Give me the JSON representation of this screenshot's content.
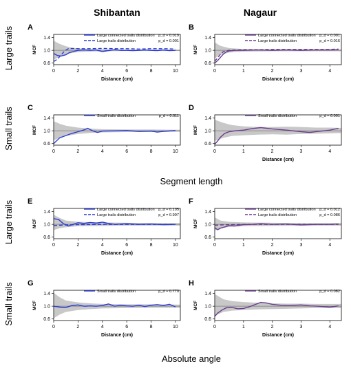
{
  "columns": [
    "Shibantan",
    "Nagaur"
  ],
  "row_labels": [
    "Large trails",
    "Small trails",
    "Large trails",
    "Small trails"
  ],
  "section_labels": [
    "Segment length",
    "Absolute angle"
  ],
  "colors": {
    "shibantan": "#2b3bd6",
    "nagaur": "#6a3d8f",
    "envelope": "#c8c8c8",
    "reference": "#777777"
  },
  "chart_data": [
    {
      "id": "A",
      "type": "line",
      "xlabel": "Distance (cm)",
      "ylabel": "MCF",
      "xlim": [
        0,
        10.4
      ],
      "ylim": [
        0.55,
        1.5
      ],
      "xticks": [
        0,
        2,
        4,
        6,
        8,
        10
      ],
      "yticks": [
        0.6,
        1.0,
        1.4
      ],
      "series": [
        {
          "name": "Large connected trails distribution",
          "pvalue": "p_d = 0.019",
          "style": "solid",
          "x": [
            0,
            0.3,
            0.6,
            1.0,
            1.3,
            1.7,
            2.0,
            2.5,
            3.0,
            3.5,
            4.0,
            4.5,
            5.0,
            5.5,
            6.0,
            6.5,
            7.0,
            7.5,
            8.0,
            8.5,
            9.0,
            9.5,
            10.0
          ],
          "y": [
            0.9,
            0.84,
            0.82,
            0.86,
            0.93,
            0.97,
            1.0,
            1.01,
            1.0,
            1.01,
            0.96,
            0.99,
            1.02,
            1.0,
            1.0,
            0.99,
            1.0,
            1.01,
            1.0,
            0.99,
            1.01,
            0.99,
            1.0
          ]
        },
        {
          "name": "Large trails distribution",
          "pvalue": "p_d = 0.001",
          "style": "dashed",
          "x": [
            0,
            0.3,
            0.6,
            0.9,
            1.2,
            1.5,
            2.0,
            2.5,
            3.0,
            4.0,
            5.0,
            6.0,
            7.0,
            8.0,
            9.0,
            10.0
          ],
          "y": [
            0.65,
            0.72,
            0.85,
            0.98,
            1.05,
            1.06,
            1.05,
            1.05,
            1.05,
            1.06,
            1.05,
            1.05,
            1.04,
            1.05,
            1.05,
            1.04
          ]
        }
      ],
      "envelope": {
        "x": [
          0,
          0.5,
          1,
          1.5,
          2,
          3,
          4,
          6,
          8,
          10.4
        ],
        "lower": [
          0.7,
          0.8,
          0.87,
          0.92,
          0.94,
          0.96,
          0.97,
          0.98,
          0.98,
          0.98
        ],
        "upper": [
          1.3,
          1.2,
          1.13,
          1.08,
          1.06,
          1.04,
          1.03,
          1.02,
          1.02,
          1.02
        ]
      }
    },
    {
      "id": "B",
      "type": "line",
      "xlabel": "Distance (cm)",
      "ylabel": "MCF",
      "xlim": [
        0,
        4.4
      ],
      "ylim": [
        0.55,
        1.5
      ],
      "xticks": [
        0,
        1,
        2,
        3,
        4
      ],
      "yticks": [
        0.6,
        1.0,
        1.4
      ],
      "series": [
        {
          "name": "Large connected trails distribution",
          "pvalue": "p_d = 0.001",
          "style": "solid",
          "x": [
            0,
            0.1,
            0.2,
            0.3,
            0.4,
            0.5,
            0.7,
            1.0,
            1.5,
            2.0,
            2.5,
            3.0,
            3.5,
            4.0,
            4.3
          ],
          "y": [
            0.6,
            0.68,
            0.78,
            0.88,
            0.95,
            0.98,
            1.0,
            1.0,
            1.01,
            1.0,
            1.01,
            1.0,
            1.01,
            1.01,
            1.02
          ]
        },
        {
          "name": "Large trails distribution",
          "pvalue": "p_d = 0.016",
          "style": "dashed",
          "x": [
            0,
            0.1,
            0.2,
            0.3,
            0.5,
            0.7,
            1.0,
            1.5,
            2.0,
            2.5,
            3.0,
            3.5,
            4.0,
            4.3
          ],
          "y": [
            0.66,
            0.76,
            0.88,
            0.96,
            1.0,
            1.01,
            1.02,
            1.02,
            1.03,
            1.03,
            1.03,
            1.03,
            1.03,
            1.04
          ]
        }
      ],
      "envelope": {
        "x": [
          0,
          0.2,
          0.5,
          1,
          2,
          3,
          4.4
        ],
        "lower": [
          0.75,
          0.86,
          0.93,
          0.96,
          0.97,
          0.97,
          0.97
        ],
        "upper": [
          1.25,
          1.14,
          1.07,
          1.04,
          1.03,
          1.03,
          1.03
        ]
      }
    },
    {
      "id": "C",
      "type": "line",
      "xlabel": "",
      "ylabel": "MCF",
      "xlim": [
        0,
        10.4
      ],
      "ylim": [
        0.55,
        1.5
      ],
      "xticks": [
        0,
        2,
        4,
        6,
        8,
        10
      ],
      "yticks": [
        0.6,
        1.0,
        1.4
      ],
      "series": [
        {
          "name": "Small trails distribution",
          "pvalue": "p_d = 0.011",
          "style": "solid",
          "x": [
            0,
            0.5,
            1.0,
            1.5,
            2.0,
            2.5,
            2.8,
            3.2,
            3.6,
            4.0,
            5.0,
            6.0,
            7.0,
            8.0,
            8.5,
            9.0,
            10.0
          ],
          "y": [
            0.6,
            0.78,
            0.85,
            0.92,
            0.97,
            1.03,
            1.08,
            1.0,
            0.95,
            0.99,
            1.0,
            1.01,
            0.98,
            0.99,
            0.96,
            0.98,
            1.01
          ]
        }
      ],
      "envelope": {
        "x": [
          0,
          0.5,
          1,
          2,
          3,
          4,
          6,
          8,
          10.4
        ],
        "lower": [
          0.7,
          0.78,
          0.84,
          0.9,
          0.93,
          0.95,
          0.96,
          0.96,
          0.97
        ],
        "upper": [
          1.3,
          1.22,
          1.16,
          1.1,
          1.07,
          1.05,
          1.04,
          1.04,
          1.03
        ]
      }
    },
    {
      "id": "D",
      "type": "line",
      "xlabel": "Distance (cm)",
      "ylabel": "MCF",
      "xlim": [
        0,
        4.4
      ],
      "ylim": [
        0.55,
        1.5
      ],
      "xticks": [
        0,
        1,
        2,
        3,
        4
      ],
      "yticks": [
        0.6,
        1.0,
        1.4
      ],
      "series": [
        {
          "name": "Small trails distribution",
          "pvalue": "p_d = 0.001",
          "style": "solid",
          "x": [
            0,
            0.1,
            0.2,
            0.35,
            0.5,
            0.7,
            1.0,
            1.3,
            1.6,
            2.0,
            2.5,
            3.0,
            3.3,
            3.6,
            4.0,
            4.3
          ],
          "y": [
            0.58,
            0.68,
            0.8,
            0.92,
            0.97,
            1.0,
            1.02,
            1.07,
            1.1,
            1.06,
            1.02,
            0.97,
            0.95,
            0.98,
            1.02,
            1.08
          ]
        }
      ],
      "envelope": {
        "x": [
          0,
          0.3,
          0.6,
          1,
          1.5,
          2,
          2.5,
          3,
          3.5,
          4,
          4.4
        ],
        "lower": [
          0.68,
          0.78,
          0.84,
          0.86,
          0.88,
          0.89,
          0.88,
          0.9,
          0.91,
          0.92,
          0.93
        ],
        "upper": [
          1.35,
          1.25,
          1.18,
          1.14,
          1.12,
          1.12,
          1.13,
          1.12,
          1.1,
          1.1,
          1.09
        ]
      }
    },
    {
      "id": "E",
      "type": "line",
      "xlabel": "Distance (cm)",
      "ylabel": "MCF",
      "xlim": [
        0,
        10.4
      ],
      "ylim": [
        0.55,
        1.5
      ],
      "xticks": [
        0,
        2,
        4,
        6,
        8,
        10
      ],
      "yticks": [
        0.6,
        1.0,
        1.4
      ],
      "series": [
        {
          "name": "Large connected trails distribution",
          "pvalue": "p_d = 0.105",
          "style": "solid",
          "x": [
            0,
            0.4,
            0.8,
            1.2,
            1.6,
            2.0,
            2.5,
            3.0,
            3.5,
            4.0,
            4.5,
            5.0,
            6.0,
            7.0,
            8.0,
            9.0,
            10.0
          ],
          "y": [
            1.18,
            1.15,
            1.02,
            0.95,
            1.0,
            1.05,
            1.03,
            1.06,
            1.04,
            1.07,
            1.03,
            1.0,
            1.02,
            1.0,
            1.01,
            0.99,
            1.0
          ]
        },
        {
          "name": "Large trails distribution",
          "pvalue": "p_d = 0.997",
          "style": "dashed",
          "x": [
            0,
            0.5,
            1,
            2,
            4,
            6,
            8,
            10
          ],
          "y": [
            0.96,
            0.97,
            0.98,
            0.99,
            1.0,
            1.0,
            1.0,
            1.0
          ]
        }
      ],
      "envelope": {
        "x": [
          0,
          0.5,
          1,
          2,
          4,
          6,
          8,
          10.4
        ],
        "lower": [
          0.82,
          0.88,
          0.91,
          0.94,
          0.95,
          0.96,
          0.96,
          0.96
        ],
        "upper": [
          1.3,
          1.2,
          1.12,
          1.08,
          1.06,
          1.05,
          1.04,
          1.04
        ]
      }
    },
    {
      "id": "F",
      "type": "line",
      "xlabel": "Distance (cm)",
      "ylabel": "MCF",
      "xlim": [
        0,
        4.4
      ],
      "ylim": [
        0.55,
        1.5
      ],
      "xticks": [
        0,
        1,
        2,
        3,
        4
      ],
      "yticks": [
        0.6,
        1.0,
        1.4
      ],
      "series": [
        {
          "name": "Large connected trails distribution",
          "pvalue": "p_d = 0.012",
          "style": "solid",
          "x": [
            0,
            0.1,
            0.2,
            0.35,
            0.5,
            0.7,
            1.0,
            1.3,
            1.6,
            2.0,
            2.5,
            3.0,
            3.5,
            4.0,
            4.3
          ],
          "y": [
            0.9,
            0.83,
            0.88,
            0.92,
            0.96,
            0.95,
            0.99,
            1.0,
            1.02,
            1.0,
            1.01,
            0.98,
            1.0,
            1.0,
            1.01
          ]
        },
        {
          "name": "Large trails distribution",
          "pvalue": "p_d = 0.086",
          "style": "dashed",
          "x": [
            0,
            0.2,
            0.5,
            1.0,
            2.0,
            3.0,
            4.0,
            4.3
          ],
          "y": [
            0.97,
            0.98,
            0.99,
            1.0,
            1.0,
            1.0,
            1.0,
            1.0
          ]
        }
      ],
      "envelope": {
        "x": [
          0,
          0.2,
          0.5,
          1,
          2,
          3,
          4.4
        ],
        "lower": [
          0.8,
          0.88,
          0.92,
          0.94,
          0.95,
          0.96,
          0.96
        ],
        "upper": [
          1.22,
          1.12,
          1.08,
          1.06,
          1.05,
          1.04,
          1.04
        ]
      }
    },
    {
      "id": "G",
      "type": "line",
      "xlabel": "Distance (cm)",
      "ylabel": "MCF",
      "xlim": [
        0,
        10.4
      ],
      "ylim": [
        0.55,
        1.5
      ],
      "xticks": [
        0,
        2,
        4,
        6,
        8,
        10
      ],
      "yticks": [
        0.6,
        1.0,
        1.4
      ],
      "series": [
        {
          "name": "Small trails distribution",
          "pvalue": "p_d = 0.770",
          "style": "solid",
          "x": [
            0,
            0.5,
            1.0,
            1.5,
            2.0,
            2.5,
            3.0,
            3.5,
            4.0,
            4.5,
            5.0,
            5.5,
            6.0,
            6.5,
            7.0,
            7.5,
            8.0,
            8.5,
            9.0,
            9.5,
            10.0
          ],
          "y": [
            1.0,
            0.97,
            0.96,
            1.02,
            1.04,
            1.0,
            1.01,
            1.0,
            1.02,
            1.07,
            1.0,
            1.03,
            1.01,
            1.0,
            1.03,
            0.99,
            1.03,
            1.05,
            1.02,
            1.06,
            0.98
          ]
        }
      ],
      "envelope": {
        "x": [
          0,
          0.5,
          1,
          2,
          3,
          4,
          6,
          8,
          10.4
        ],
        "lower": [
          0.62,
          0.74,
          0.82,
          0.88,
          0.91,
          0.93,
          0.94,
          0.95,
          0.95
        ],
        "upper": [
          1.42,
          1.28,
          1.18,
          1.12,
          1.09,
          1.07,
          1.06,
          1.06,
          1.05
        ]
      }
    },
    {
      "id": "H",
      "type": "line",
      "xlabel": "Distance (cm)",
      "ylabel": "MCF",
      "xlim": [
        0,
        4.4
      ],
      "ylim": [
        0.55,
        1.5
      ],
      "xticks": [
        0,
        1,
        2,
        3,
        4
      ],
      "yticks": [
        0.6,
        1.0,
        1.4
      ],
      "series": [
        {
          "name": "Small trails distribution",
          "pvalue": "p_d = 0.082",
          "style": "solid",
          "x": [
            0,
            0.1,
            0.25,
            0.4,
            0.6,
            0.8,
            1.0,
            1.2,
            1.4,
            1.6,
            1.8,
            2.0,
            2.3,
            2.6,
            3.0,
            3.3,
            3.6,
            4.0,
            4.3
          ],
          "y": [
            0.68,
            0.78,
            0.88,
            0.95,
            0.96,
            0.92,
            0.93,
            0.98,
            1.05,
            1.12,
            1.1,
            1.06,
            1.03,
            1.02,
            1.04,
            1.01,
            1.0,
            0.97,
            1.01
          ]
        }
      ],
      "envelope": {
        "x": [
          0,
          0.3,
          0.6,
          1,
          1.5,
          2,
          2.5,
          3,
          3.5,
          4,
          4.4
        ],
        "lower": [
          0.7,
          0.82,
          0.86,
          0.88,
          0.9,
          0.91,
          0.92,
          0.93,
          0.94,
          0.94,
          0.94
        ],
        "upper": [
          1.38,
          1.22,
          1.16,
          1.13,
          1.11,
          1.09,
          1.08,
          1.08,
          1.07,
          1.07,
          1.07
        ]
      }
    }
  ]
}
